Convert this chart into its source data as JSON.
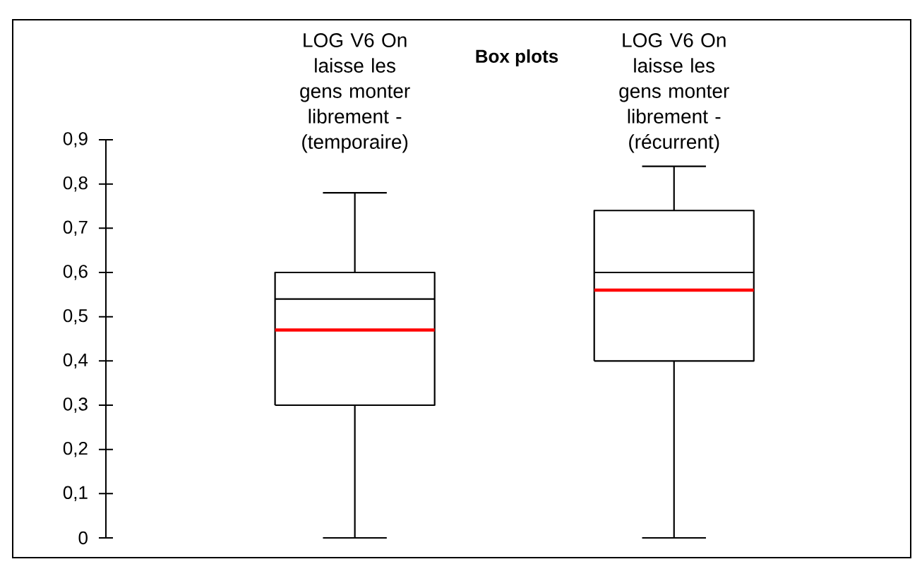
{
  "chart_data": {
    "type": "box",
    "title": "Box plots",
    "categories": [
      "LOG V6 On laisse les gens monter librement - (temporaire)",
      "LOG V6 On laisse les gens monter librement - (récurrent)"
    ],
    "boxes": [
      {
        "low": 0,
        "q1": 0.3,
        "median": 0.54,
        "q3": 0.6,
        "high": 0.78,
        "mean": 0.47
      },
      {
        "low": 0,
        "q1": 0.4,
        "median": 0.6,
        "q3": 0.74,
        "high": 0.84,
        "mean": 0.56
      }
    ],
    "ylim": [
      0,
      0.9
    ],
    "yticks": [
      0,
      {
        "value": 0.1,
        "label": "0,1"
      },
      {
        "value": 0.2,
        "label": "0,2"
      },
      {
        "value": 0.3,
        "label": "0,3"
      },
      {
        "value": 0.4,
        "label": "0,4"
      },
      {
        "value": 0.5,
        "label": "0,5"
      },
      {
        "value": 0.6,
        "label": "0,6"
      },
      {
        "value": 0.7,
        "label": "0,7"
      },
      {
        "value": 0.8,
        "label": "0,8"
      },
      {
        "value": 0.9,
        "label": "0,9"
      }
    ]
  }
}
